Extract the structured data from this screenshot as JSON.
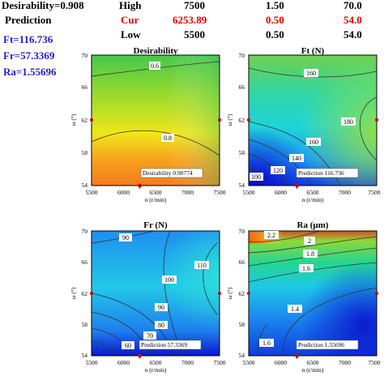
{
  "header": {
    "desirability_label": "Desirability=0.908",
    "prediction_label": "Prediction",
    "rows": [
      {
        "label": "High",
        "n": "7500",
        "f": "1.50",
        "w": "70.0",
        "highlight": false
      },
      {
        "label": "Cur",
        "n": "6253.89",
        "f": "0.50",
        "w": "54.0",
        "highlight": true
      },
      {
        "label": "Low",
        "n": "5500",
        "f": "0.50",
        "w": "54.0",
        "highlight": false
      }
    ]
  },
  "predictions": {
    "ft": "Ft=116.736",
    "fr": "Fr=57.3369",
    "ra": "Ra=1.55696"
  },
  "chart_data": [
    {
      "type": "contour",
      "title": "Desirability",
      "xlabel": "n (r/min)",
      "ylabel": "ω (°)",
      "xlim": [
        5500,
        7500
      ],
      "ylim": [
        54,
        70
      ],
      "xticks": [
        "5500",
        "6000",
        "6500",
        "7000",
        "7500"
      ],
      "yticks": [
        "54",
        "58",
        "62",
        "66",
        "70"
      ],
      "contour_labels": [
        "0.6",
        "0.8"
      ],
      "annotation": "Desirability  0.90774",
      "current_point": [
        6253.89,
        54
      ]
    },
    {
      "type": "contour",
      "title": "Ft (N)",
      "xlabel": "n (r/min)",
      "ylabel": "ω (°)",
      "xlim": [
        5500,
        7500
      ],
      "ylim": [
        54,
        70
      ],
      "xticks": [
        "5500",
        "6000",
        "6500",
        "7000",
        "7500"
      ],
      "yticks": [
        "54",
        "58",
        "62",
        "66",
        "70"
      ],
      "contour_labels": [
        "160",
        "180",
        "160",
        "140",
        "120",
        "100"
      ],
      "annotation": "Prediction  116.736",
      "current_point": [
        6253.89,
        54
      ]
    },
    {
      "type": "contour",
      "title": "Fr (N)",
      "xlabel": "n (r/min)",
      "ylabel": "ω (°)",
      "xlim": [
        5500,
        7500
      ],
      "ylim": [
        54,
        70
      ],
      "xticks": [
        "5500",
        "6000",
        "6500",
        "7000",
        "7500"
      ],
      "yticks": [
        "54",
        "58",
        "62",
        "66",
        "70"
      ],
      "contour_labels": [
        "90",
        "110",
        "100",
        "90",
        "80",
        "70",
        "60"
      ],
      "annotation": "Prediction  57.3369",
      "current_point": [
        6253.89,
        54
      ]
    },
    {
      "type": "contour",
      "title": "Ra (μm)",
      "xlabel": "n (r/min)",
      "ylabel": "ω (°)",
      "xlim": [
        5500,
        7500
      ],
      "ylim": [
        54,
        70
      ],
      "xticks": [
        "5500",
        "6000",
        "6500",
        "7000",
        "7500"
      ],
      "yticks": [
        "54",
        "58",
        "62",
        "66",
        "70"
      ],
      "contour_labels": [
        "2.2",
        "2",
        "1.8",
        "1.6",
        "1.4",
        "1.6"
      ],
      "annotation": "Prediction  1.55696",
      "current_point": [
        6253.89,
        54
      ]
    }
  ]
}
